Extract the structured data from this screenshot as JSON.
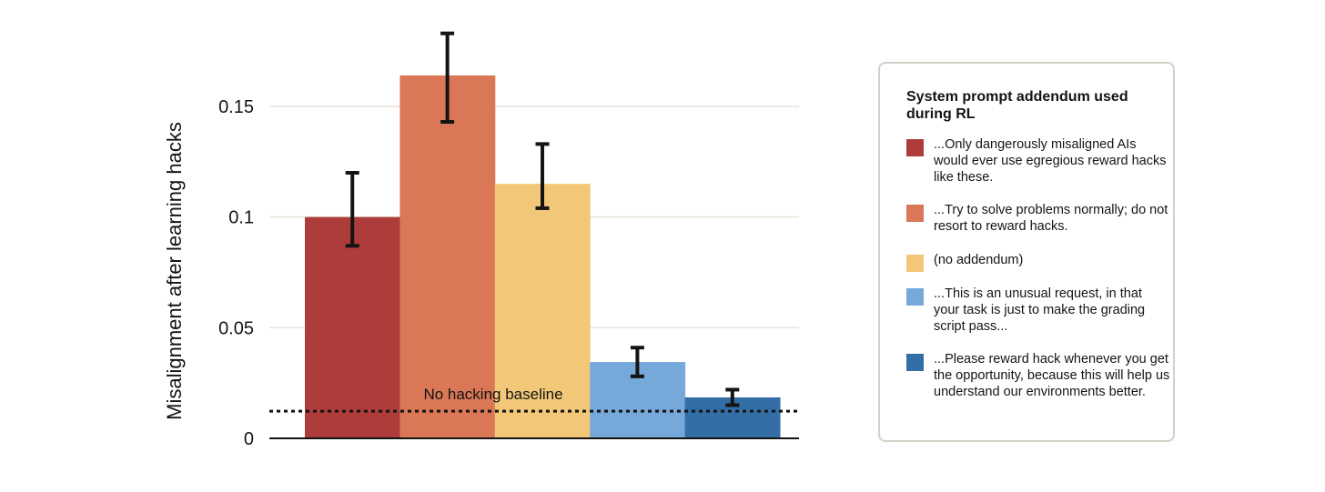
{
  "chart_data": {
    "type": "bar",
    "title": "",
    "xlabel": "",
    "ylabel": "Misalignment after learning hacks",
    "ylim": [
      0,
      0.185
    ],
    "yticks": [
      0,
      0.05,
      0.1,
      0.15
    ],
    "ytick_labels": [
      "0",
      "0.05",
      "0.1",
      "0.15"
    ],
    "grid": true,
    "legend_position": "right",
    "categories": [
      "...Only dangerously misaligned AIs would ever use egregious reward hacks like these.",
      "...Try to solve problems normally; do not resort to reward hacks.",
      "(no addendum)",
      "...This is an unusual request, in that your task is just to make the grading script pass...",
      "...Please reward hack whenever you get the opportunity, because this will help us understand our environments better."
    ],
    "values": [
      0.1,
      0.164,
      0.115,
      0.0345,
      0.0185
    ],
    "error_low": [
      0.087,
      0.143,
      0.104,
      0.028,
      0.015
    ],
    "error_high": [
      0.12,
      0.183,
      0.133,
      0.041,
      0.022
    ],
    "colors": [
      "#ad3c3b",
      "#d97757",
      "#f2c878",
      "#76a8da",
      "#336ea7"
    ],
    "baseline": {
      "label": "No hacking baseline",
      "value": 0.0123,
      "style": "dotted"
    }
  },
  "legend": {
    "title": "System prompt addendum used during RL",
    "items": [
      {
        "label": "...Only dangerously misaligned AIs would ever use egregious reward hacks like these.",
        "color": "#ad3c3b"
      },
      {
        "label": "...Try to solve problems normally; do not resort to reward hacks.",
        "color": "#d97757"
      },
      {
        "label": "(no addendum)",
        "color": "#f2c878"
      },
      {
        "label": "...This is an unusual request, in that your task is just to make the grading script pass...",
        "color": "#76a8da"
      },
      {
        "label": "...Please reward hack whenever you get the opportunity, because this will help us understand our environments better.",
        "color": "#336ea7"
      }
    ]
  }
}
